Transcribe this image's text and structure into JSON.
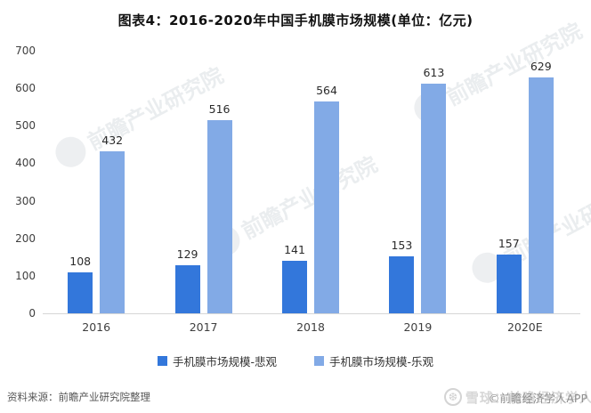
{
  "title": "图表4：2016-2020年中国手机膜市场规模(单位：亿元)",
  "chart_data": {
    "type": "bar",
    "categories": [
      "2016",
      "2017",
      "2018",
      "2019",
      "2020E"
    ],
    "series": [
      {
        "name": "手机膜市场规模-悲观",
        "color": "#3377db",
        "values": [
          108,
          129,
          141,
          153,
          157
        ]
      },
      {
        "name": "手机膜市场规模-乐观",
        "color": "#82aae6",
        "values": [
          432,
          516,
          564,
          613,
          629
        ]
      }
    ],
    "title": "图表4：2016-2020年中国手机膜市场规模(单位：亿元)",
    "xlabel": "",
    "ylabel": "",
    "ylim": [
      0,
      700
    ],
    "ytick_step": 100,
    "grid": false,
    "legend_position": "bottom"
  },
  "footer": {
    "source": "资料来源：前瞻产业研究院整理"
  },
  "watermarks": {
    "plot": "前瞻产业研究院",
    "brand_light": "雪球：前瞻经济学人",
    "brand_dark": "©前瞻经济学人APP",
    "brand_icon": "❆"
  }
}
